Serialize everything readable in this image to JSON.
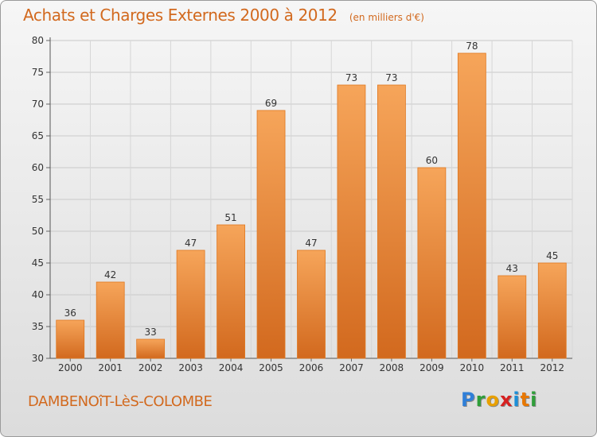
{
  "header": {
    "title": "Achats et Charges Externes 2000 à 2012",
    "unit": "(en milliers d'€)"
  },
  "footer": {
    "commune": "DAMBENOîT-LèS-COLOMBE",
    "brand_letters": [
      "P",
      "r",
      "o",
      "x",
      "i",
      "t",
      "i"
    ],
    "brand_colors": [
      "#2f7fd8",
      "#2f9e3a",
      "#e8a000",
      "#d62020",
      "#1b8fd8",
      "#e87800",
      "#2f9e3a"
    ]
  },
  "colors": {
    "bar_top": "#f6a55a",
    "bar_bottom": "#d2691e",
    "bar_edge": "#e07820",
    "text": "#d2691e",
    "axis_text": "#333333"
  },
  "chart_data": {
    "type": "bar",
    "categories": [
      "2000",
      "2001",
      "2002",
      "2003",
      "2004",
      "2005",
      "2006",
      "2007",
      "2008",
      "2009",
      "2010",
      "2011",
      "2012"
    ],
    "values": [
      36,
      42,
      33,
      47,
      51,
      69,
      47,
      73,
      73,
      60,
      78,
      43,
      45
    ],
    "title": "Achats et Charges Externes 2000 à 2012",
    "xlabel": "",
    "ylabel": "",
    "ylim": [
      30,
      80
    ],
    "yticks": [
      30,
      35,
      40,
      45,
      50,
      55,
      60,
      65,
      70,
      75,
      80
    ],
    "grid": true,
    "legend": "none"
  }
}
